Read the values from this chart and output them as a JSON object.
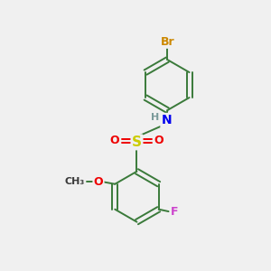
{
  "background_color": "#f0f0f0",
  "atom_colors": {
    "C": "#3a3a3a",
    "H": "#7a9a9a",
    "N": "#0000ee",
    "O": "#ee0000",
    "S": "#cccc00",
    "F": "#cc44cc",
    "Br": "#cc8800"
  },
  "bond_color": "#3a7a3a",
  "lw": 1.4
}
